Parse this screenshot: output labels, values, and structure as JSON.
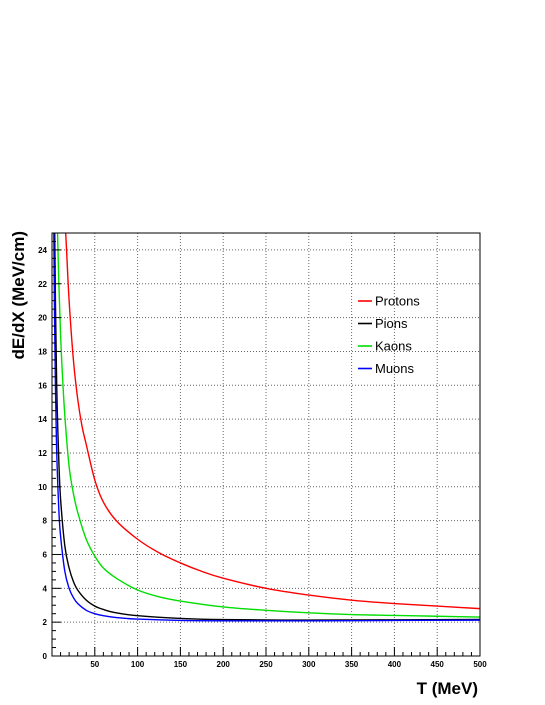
{
  "chart_data": {
    "type": "line",
    "title": "",
    "xlabel": "T (MeV)",
    "ylabel": "dE/dX (MeV/cm)",
    "xlim": [
      0,
      500
    ],
    "ylim": [
      0,
      25
    ],
    "x_ticks": [
      50,
      100,
      150,
      200,
      250,
      300,
      350,
      400,
      450,
      500
    ],
    "y_ticks": [
      0,
      2,
      4,
      6,
      8,
      10,
      12,
      14,
      16,
      18,
      20,
      22,
      24
    ],
    "grid": true,
    "legend_position": "top-right",
    "series": [
      {
        "name": "Protons",
        "color": "#ff0000",
        "x": [
          14,
          17,
          20,
          25,
          30,
          35,
          40,
          50,
          60,
          75,
          100,
          125,
          150,
          175,
          200,
          250,
          300,
          350,
          400,
          450,
          500
        ],
        "y": [
          27,
          24,
          21,
          17.5,
          15.2,
          13.6,
          12.5,
          10.4,
          9.1,
          8.0,
          6.9,
          6.1,
          5.5,
          5.0,
          4.6,
          4.0,
          3.6,
          3.3,
          3.1,
          2.95,
          2.8
        ]
      },
      {
        "name": "Pions",
        "color": "#000000",
        "x": [
          3,
          4,
          5,
          6,
          8,
          10,
          15,
          20,
          25,
          30,
          40,
          50,
          60,
          75,
          100,
          150,
          200,
          300,
          400,
          500
        ],
        "y": [
          26,
          21,
          17.5,
          14.8,
          11.5,
          9.3,
          6.5,
          5.2,
          4.4,
          3.9,
          3.3,
          2.95,
          2.75,
          2.55,
          2.38,
          2.22,
          2.15,
          2.12,
          2.14,
          2.16
        ]
      },
      {
        "name": "Kaons",
        "color": "#00dd00",
        "x": [
          6,
          8,
          10,
          12,
          15,
          20,
          25,
          30,
          40,
          50,
          60,
          75,
          100,
          125,
          150,
          200,
          250,
          300,
          350,
          400,
          450,
          500
        ],
        "y": [
          26,
          22,
          19,
          16.8,
          14.2,
          11.2,
          9.6,
          8.5,
          6.9,
          5.9,
          5.2,
          4.6,
          3.9,
          3.5,
          3.25,
          2.9,
          2.7,
          2.55,
          2.45,
          2.4,
          2.35,
          2.3
        ]
      },
      {
        "name": "Muons",
        "color": "#0000ff",
        "x": [
          2,
          3,
          4,
          5,
          6,
          8,
          10,
          15,
          20,
          25,
          30,
          40,
          50,
          60,
          75,
          100,
          150,
          200,
          300,
          400,
          500
        ],
        "y": [
          26,
          20,
          16,
          13.2,
          11.2,
          8.6,
          7.1,
          5.0,
          4.0,
          3.45,
          3.1,
          2.7,
          2.5,
          2.38,
          2.27,
          2.18,
          2.1,
          2.08,
          2.08,
          2.1,
          2.12
        ]
      }
    ]
  }
}
